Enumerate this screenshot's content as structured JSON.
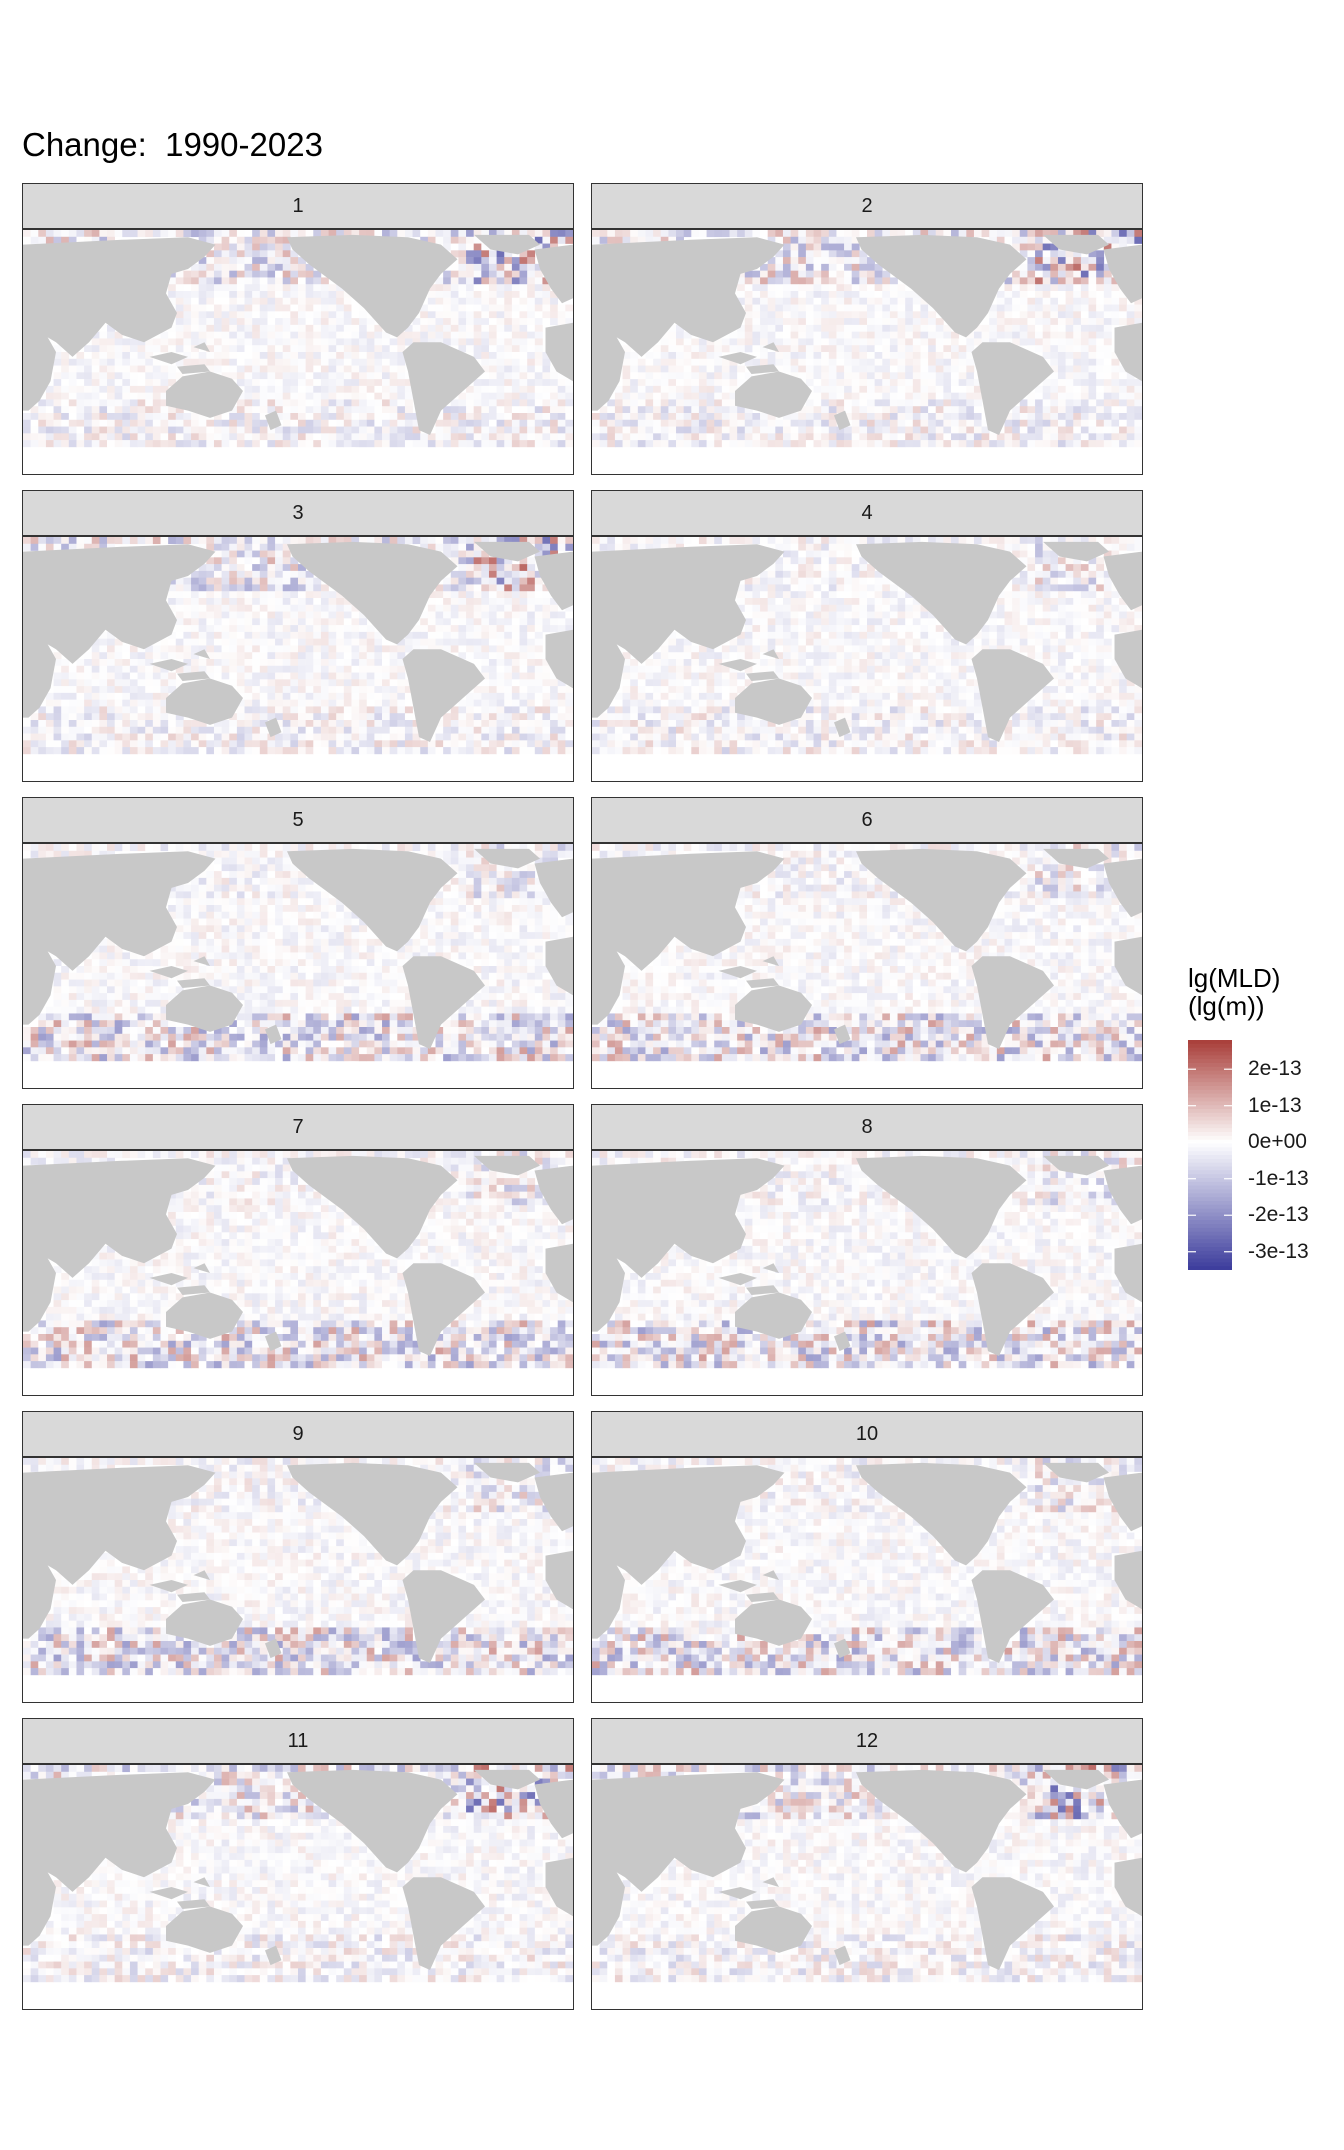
{
  "title": "Change:  1990-2023",
  "chart_data": {
    "type": "heatmap",
    "title": "Change:  1990-2023",
    "panels": [
      "1",
      "2",
      "3",
      "4",
      "5",
      "6",
      "7",
      "8",
      "9",
      "10",
      "11",
      "12"
    ],
    "legend": {
      "title_line1": "lg(MLD)",
      "title_line2": "(lg(m))",
      "placement": "right",
      "range": [
        -3.5e-13,
        2.8e-13
      ],
      "ticks": [
        {
          "value": 2e-13,
          "label": "2e-13"
        },
        {
          "value": 1e-13,
          "label": "1e-13"
        },
        {
          "value": 0,
          "label": "0e+00"
        },
        {
          "value": -1e-13,
          "label": "-1e-13"
        },
        {
          "value": -2e-13,
          "label": "-2e-13"
        },
        {
          "value": -3e-13,
          "label": "-3e-13"
        }
      ],
      "colors": {
        "high": "#a83d38",
        "mid": "#ffffff",
        "low": "#3b3b9c"
      }
    },
    "land_color": "#c8c8c8",
    "ice_color": "#ffffff"
  }
}
